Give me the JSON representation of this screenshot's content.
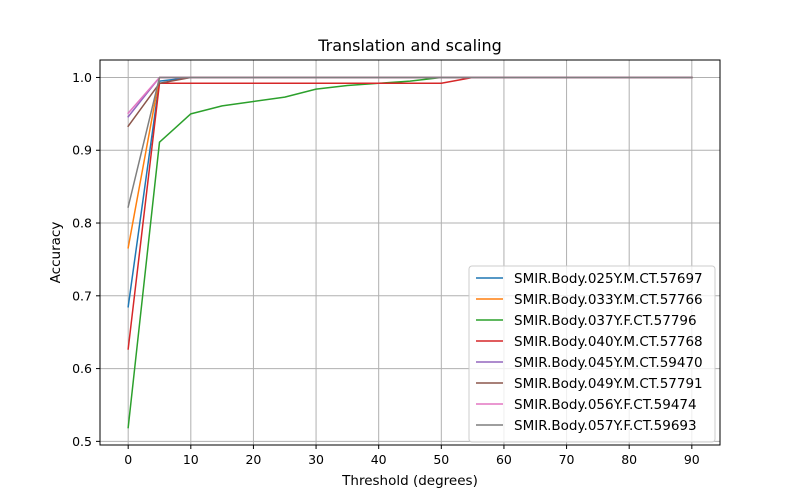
{
  "chart_data": {
    "type": "line",
    "title": "Translation and scaling",
    "xlabel": "Threshold (degrees)",
    "ylabel": "Accuracy",
    "xlim": [
      -4.5,
      94.5
    ],
    "ylim": [
      0.495,
      1.024
    ],
    "xticks": [
      0,
      10,
      20,
      30,
      40,
      50,
      60,
      70,
      80,
      90
    ],
    "yticks": [
      0.5,
      0.6,
      0.7,
      0.8,
      0.9,
      1.0
    ],
    "ytick_labels": [
      "0.5",
      "0.6",
      "0.7",
      "0.8",
      "0.9",
      "1.0"
    ],
    "grid": true,
    "legend_position": "lower right",
    "x": [
      0,
      5,
      10,
      15,
      20,
      25,
      30,
      35,
      40,
      45,
      50,
      55,
      60,
      65,
      70,
      75,
      80,
      85,
      90
    ],
    "series": [
      {
        "name": "SMIR.Body.025Y.M.CT.57697",
        "color": "#1f77b4",
        "values": [
          0.685,
          0.995,
          1,
          1,
          1,
          1,
          1,
          1,
          1,
          1,
          1,
          1,
          1,
          1,
          1,
          1,
          1,
          1,
          1
        ]
      },
      {
        "name": "SMIR.Body.033Y.M.CT.57766",
        "color": "#ff7f0e",
        "values": [
          0.766,
          1,
          1,
          1,
          1,
          1,
          1,
          1,
          1,
          1,
          1,
          1,
          1,
          1,
          1,
          1,
          1,
          1,
          1
        ]
      },
      {
        "name": "SMIR.Body.037Y.F.CT.57796",
        "color": "#2ca02c",
        "values": [
          0.519,
          0.911,
          0.95,
          0.961,
          0.967,
          0.973,
          0.984,
          0.989,
          0.992,
          0.995,
          1,
          1,
          1,
          1,
          1,
          1,
          1,
          1,
          1
        ]
      },
      {
        "name": "SMIR.Body.040Y.M.CT.57768",
        "color": "#d62728",
        "values": [
          0.627,
          0.992,
          0.992,
          0.992,
          0.992,
          0.992,
          0.992,
          0.992,
          0.992,
          0.992,
          0.992,
          1,
          1,
          1,
          1,
          1,
          1,
          1,
          1
        ]
      },
      {
        "name": "SMIR.Body.045Y.M.CT.59470",
        "color": "#9467bd",
        "values": [
          0.946,
          1,
          1,
          1,
          1,
          1,
          1,
          1,
          1,
          1,
          1,
          1,
          1,
          1,
          1,
          1,
          1,
          1,
          1
        ]
      },
      {
        "name": "SMIR.Body.049Y.M.CT.57791",
        "color": "#8c564b",
        "values": [
          0.933,
          0.992,
          1,
          1,
          1,
          1,
          1,
          1,
          1,
          1,
          1,
          1,
          1,
          1,
          1,
          1,
          1,
          1,
          1
        ]
      },
      {
        "name": "SMIR.Body.056Y.F.CT.59474",
        "color": "#e377c2",
        "values": [
          0.951,
          1,
          1,
          1,
          1,
          1,
          1,
          1,
          1,
          1,
          1,
          1,
          1,
          1,
          1,
          1,
          1,
          1,
          1
        ]
      },
      {
        "name": "SMIR.Body.057Y.F.CT.59693",
        "color": "#7f7f7f",
        "values": [
          0.822,
          1,
          1,
          1,
          1,
          1,
          1,
          1,
          1,
          1,
          1,
          1,
          1,
          1,
          1,
          1,
          1,
          1,
          1
        ]
      }
    ]
  }
}
